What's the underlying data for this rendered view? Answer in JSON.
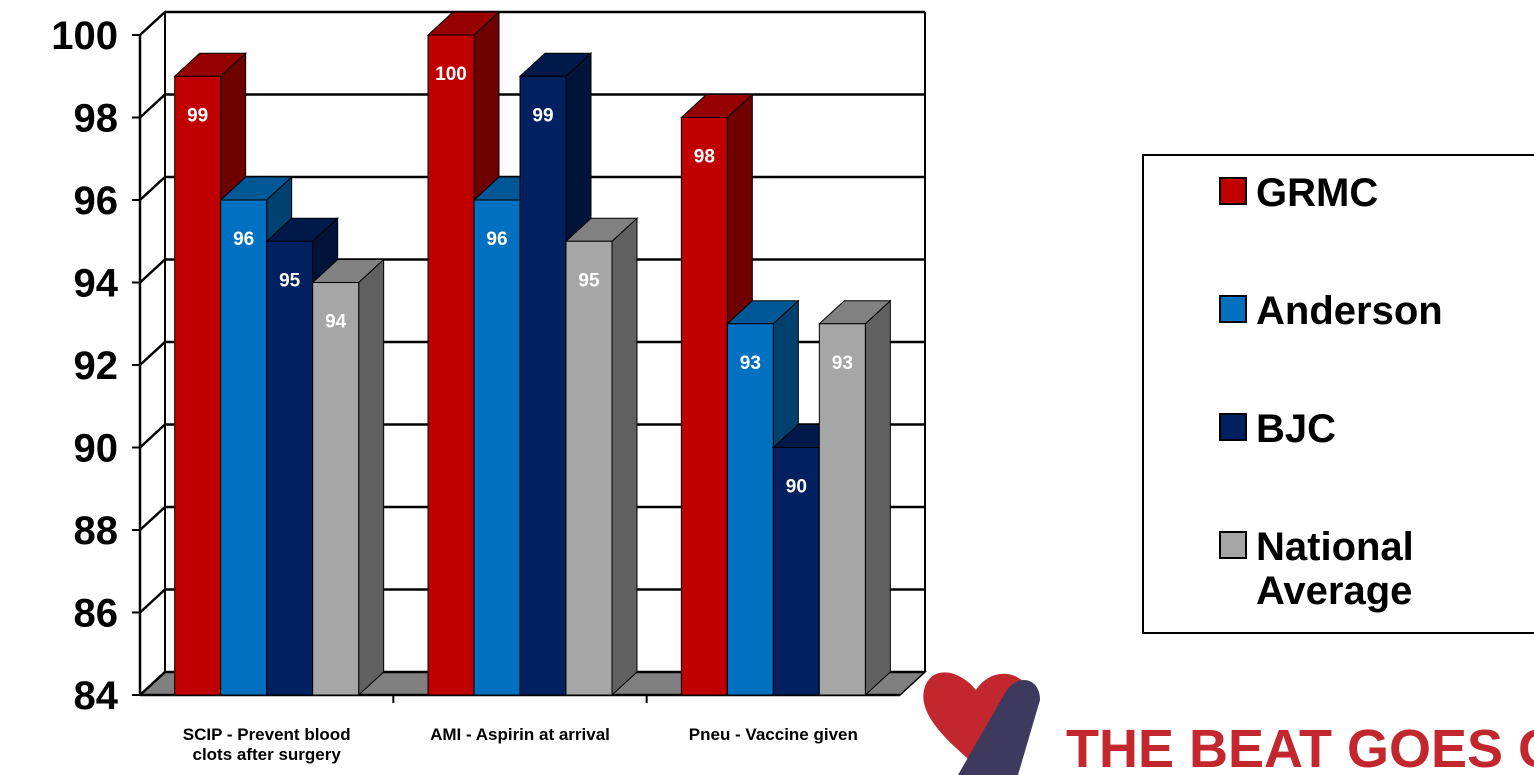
{
  "chart_data": {
    "type": "bar",
    "title": "",
    "xlabel": "",
    "ylabel": "",
    "ylim": [
      84,
      100
    ],
    "yticks": [
      84,
      86,
      88,
      90,
      92,
      94,
      96,
      98,
      100
    ],
    "grid": true,
    "legend_position": "right",
    "categories": [
      [
        "SCIP - Prevent blood",
        "clots after surgery"
      ],
      [
        "AMI - Aspirin at arrival"
      ],
      [
        "Pneu - Vaccine given"
      ]
    ],
    "series": [
      {
        "name": "GRMC",
        "legend": [
          "GRMC"
        ],
        "color": "#c00000",
        "values": [
          99,
          100,
          98
        ]
      },
      {
        "name": "Anderson",
        "legend": [
          "Anderson"
        ],
        "color": "#0070c0",
        "values": [
          96,
          96,
          93
        ]
      },
      {
        "name": "BJC",
        "legend": [
          "BJC"
        ],
        "color": "#002060",
        "values": [
          95,
          99,
          90
        ]
      },
      {
        "name": "National Average",
        "legend": [
          "National",
          "Average"
        ],
        "color": "#a6a6a6",
        "values": [
          94,
          95,
          93
        ]
      }
    ]
  },
  "logo": {
    "text": "THE BEAT GOES ON",
    "icon": "heart-icon"
  }
}
